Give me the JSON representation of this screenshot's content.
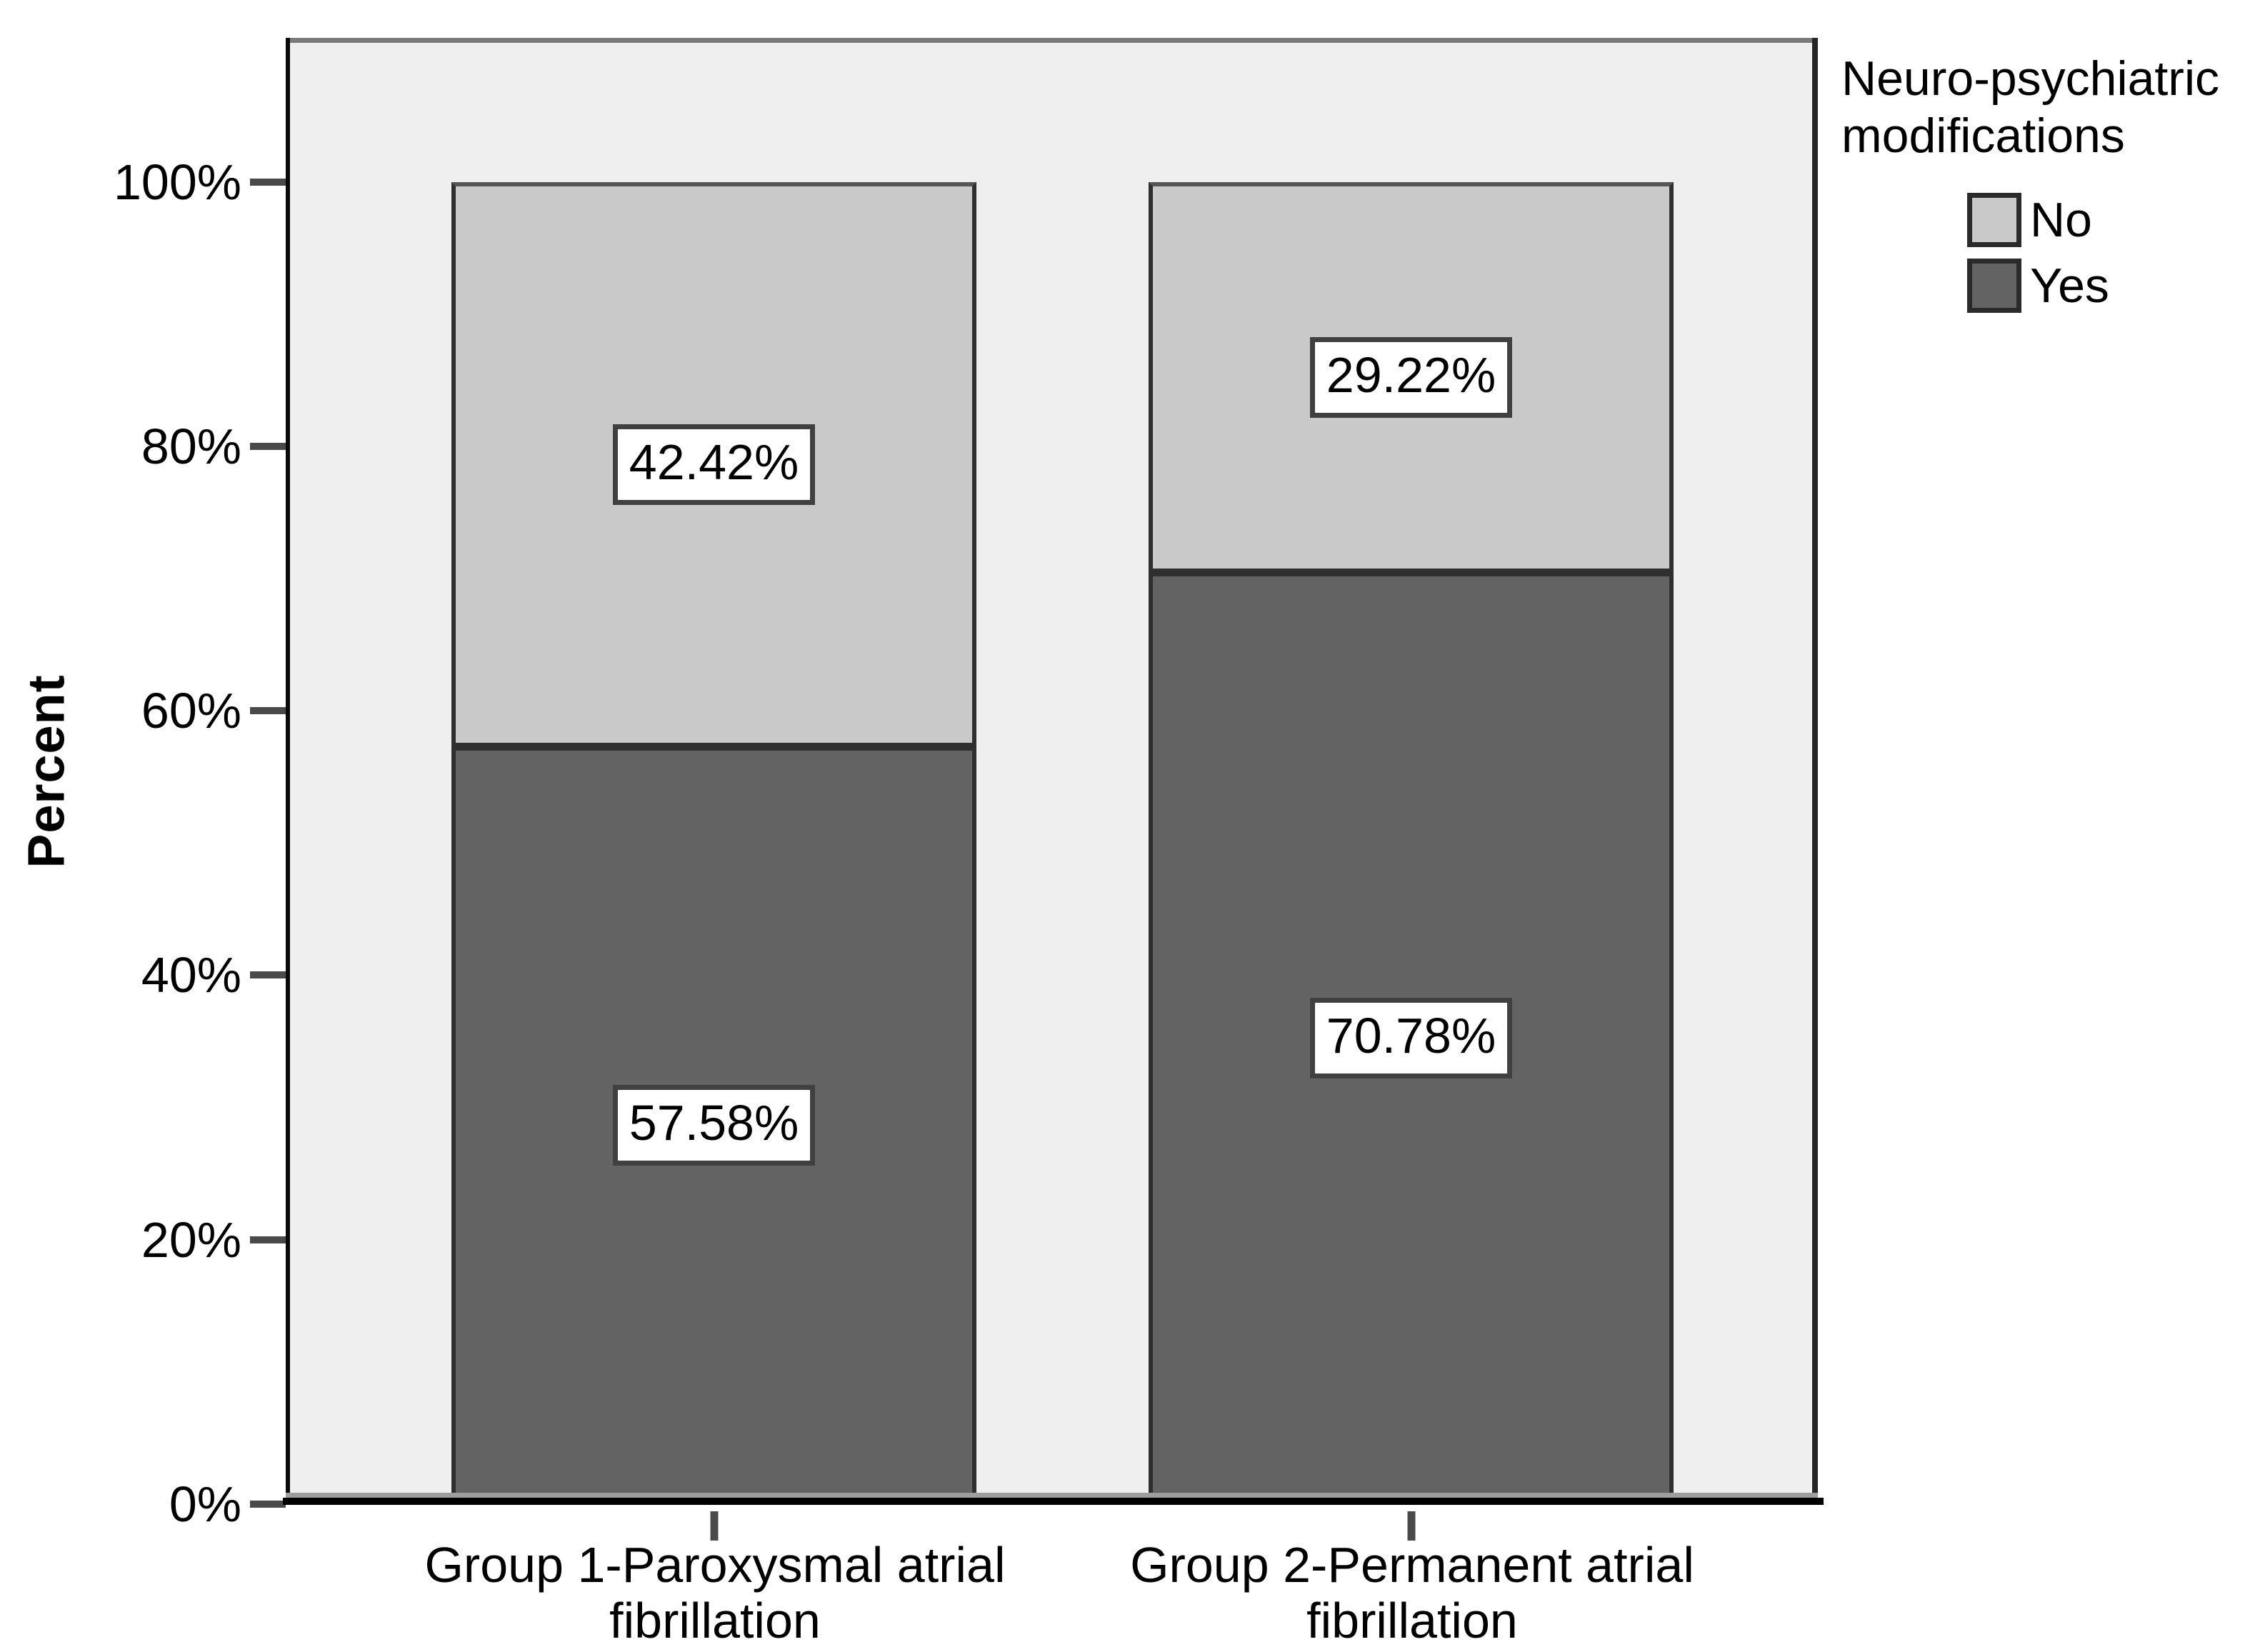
{
  "chart_data": {
    "type": "bar",
    "variant": "stacked-percent",
    "title": "",
    "xlabel": "",
    "ylabel": "Percent",
    "categories": [
      "Group 1-Paroxysmal atrial fibrillation",
      "Group 2-Permanent atrial fibrillation"
    ],
    "series": [
      {
        "name": "No",
        "color": "#c9c9c9",
        "values": [
          42.42,
          29.22
        ],
        "data_labels": [
          "42.42%",
          "29.22%"
        ]
      },
      {
        "name": "Yes",
        "color": "#636363",
        "values": [
          57.58,
          70.78
        ],
        "data_labels": [
          "57.58%",
          "70.78%"
        ]
      }
    ],
    "ylim": [
      0,
      100
    ],
    "yticks": [
      "0%",
      "20%",
      "40%",
      "60%",
      "80%",
      "100%"
    ],
    "grid": false,
    "plot_background": "#efefef",
    "legend": {
      "title": "Neuro-psychiatric modifications",
      "position": "top-right",
      "items": [
        {
          "label": "No",
          "color": "#c9c9c9"
        },
        {
          "label": "Yes",
          "color": "#636363"
        }
      ]
    }
  }
}
